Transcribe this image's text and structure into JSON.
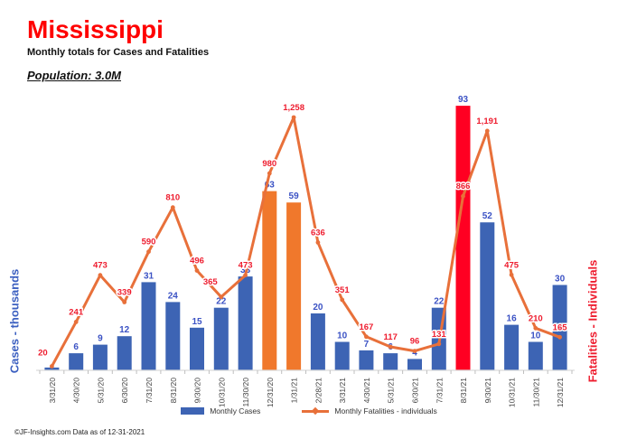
{
  "header": {
    "title": "Mississippi",
    "subtitle": "Monthly totals for Cases and Fatalities",
    "population": "Population: 3.0M"
  },
  "axes": {
    "left_label": "Cases - thousands",
    "right_label": "Fatalities - Individuals"
  },
  "legend": {
    "cases_label": "Monthly Cases",
    "fatalities_label": "Monthly Fatalities - individuals"
  },
  "footer": {
    "credit": "©JF-Insights.com  Data as of 12-31-2021"
  },
  "colors": {
    "bar_blue": "#3d64b4",
    "bar_orange": "#f0782c",
    "bar_red": "#ff0022",
    "line_orange": "#e8703a",
    "label_blue": "#3b52c4",
    "label_red": "#ee1c2e",
    "title_red": "#ff0000",
    "axis_gray": "#d9d9d9",
    "tick_gray": "#bfbfbf",
    "xlabel_gray": "#404040"
  },
  "chart_data": {
    "type": "bar+line combo",
    "title": "Mississippi — Monthly totals for Cases and Fatalities",
    "grid": false,
    "legend_position": "bottom",
    "categories": [
      "3/31/20",
      "4/30/20",
      "5/31/20",
      "6/30/20",
      "7/31/20",
      "8/31/20",
      "9/30/20",
      "10/31/20",
      "11/30/20",
      "12/31/20",
      "1/31/21",
      "2/28/21",
      "3/31/21",
      "4/30/21",
      "5/31/21",
      "6/30/21",
      "7/31/21",
      "8/31/21",
      "9/30/21",
      "10/31/21",
      "11/30/21",
      "12/31/21"
    ],
    "series": [
      {
        "name": "Monthly Cases",
        "type": "bar",
        "axis": "left",
        "axis_label": "Cases - thousands",
        "implied_range": [
          0,
          100
        ],
        "values": [
          1,
          6,
          9,
          12,
          31,
          24,
          15,
          22,
          33,
          63,
          59,
          20,
          10,
          7,
          6,
          4,
          22,
          93,
          52,
          16,
          10,
          30
        ],
        "labels": [
          "",
          "6",
          "9",
          "12",
          "31",
          "24",
          "15",
          "22",
          "33",
          "63",
          "59",
          "20",
          "10",
          "7",
          "6",
          "4",
          "22",
          "93",
          "52",
          "16",
          "10",
          "30"
        ],
        "color_overrides": {
          "9": "bar_orange",
          "10": "bar_orange",
          "17": "bar_red"
        }
      },
      {
        "name": "Monthly Fatalities - individuals",
        "type": "line",
        "axis": "right",
        "axis_label": "Fatalities - Individuals",
        "implied_range": [
          0,
          1300
        ],
        "values": [
          20,
          241,
          473,
          339,
          590,
          810,
          496,
          365,
          473,
          980,
          1258,
          636,
          351,
          167,
          117,
          96,
          131,
          866,
          1191,
          475,
          210,
          165
        ],
        "labels": [
          "20",
          "241",
          "473",
          "339",
          "590",
          "810",
          "496",
          "365",
          "473",
          "980",
          "1,258",
          "636",
          "351",
          "167",
          "117",
          "96",
          "131",
          "866",
          "1,191",
          "475",
          "210",
          "165"
        ]
      }
    ]
  }
}
